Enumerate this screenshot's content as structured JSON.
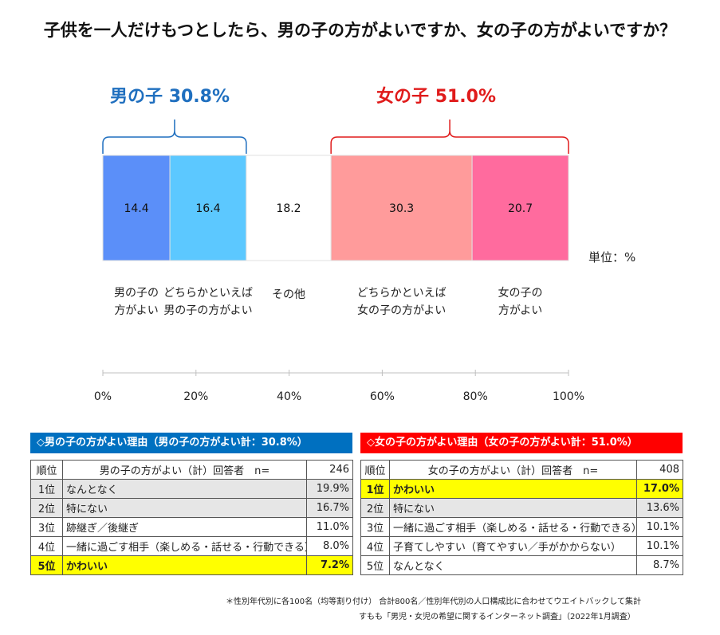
{
  "title": "子供を一人だけもつとしたら、男の子の方がよいですか、女の子の方がよいですか？",
  "boy_group": {
    "label": "男の子",
    "value": "30.8%",
    "color": "#1f6fbf"
  },
  "girl_group": {
    "label": "女の子",
    "value": "51.0%",
    "color": "#e01b1b"
  },
  "unit_label": "単位：%",
  "chart_data": {
    "type": "bar",
    "orientation": "horizontal-stacked",
    "xlim": [
      0,
      100
    ],
    "x_ticks": [
      "0%",
      "20%",
      "40%",
      "60%",
      "80%",
      "100%"
    ],
    "categories": [
      {
        "lines": [
          "男の子の",
          "方がよい"
        ],
        "value": 14.4,
        "label": "14.4",
        "color": "#5b8ff9"
      },
      {
        "lines": [
          "どちらかといえば",
          "男の子の方がよい"
        ],
        "value": 16.4,
        "label": "16.4",
        "color": "#5cc8ff"
      },
      {
        "lines": [
          "その他"
        ],
        "value": 18.2,
        "label": "18.2",
        "color": "#ffffff"
      },
      {
        "lines": [
          "どちらかといえば",
          "女の子の方がよい"
        ],
        "value": 30.3,
        "label": "30.3",
        "color": "#ff9b9b"
      },
      {
        "lines": [
          "女の子の",
          "方がよい"
        ],
        "value": 20.7,
        "label": "20.7",
        "color": "#ff6b9e"
      }
    ],
    "groups": [
      {
        "name": "男の子",
        "total": 30.8,
        "from": 0,
        "to": 30.8
      },
      {
        "name": "女の子",
        "total": 51.0,
        "from": 49.0,
        "to": 100
      }
    ]
  },
  "boy_table": {
    "heading": "◇男の子の方がよい理由（男の子の方がよい計：30.8%）",
    "head_color": "#0070c0",
    "header": {
      "rank": "順位",
      "desc": "男の子の方がよい（計）回答者　n=",
      "n": "246"
    },
    "rows": [
      {
        "rank": "1位",
        "reason": "なんとなく",
        "pct": "19.9%",
        "style": "shade"
      },
      {
        "rank": "2位",
        "reason": "特にない",
        "pct": "16.7%",
        "style": "shade"
      },
      {
        "rank": "3位",
        "reason": "跡継ぎ／後継ぎ",
        "pct": "11.0%",
        "style": ""
      },
      {
        "rank": "4位",
        "reason": "一緒に過ごす相手（楽しめる・話せる・行動できる）",
        "pct": "8.0%",
        "style": ""
      },
      {
        "rank": "5位",
        "reason": "かわいい",
        "pct": "7.2%",
        "style": "hl"
      }
    ]
  },
  "girl_table": {
    "heading": "◇女の子の方がよい理由（女の子の方がよい計：51.0%）",
    "head_color": "#ff0000",
    "header": {
      "rank": "順位",
      "desc": "女の子の方がよい（計）回答者　n=",
      "n": "408"
    },
    "rows": [
      {
        "rank": "1位",
        "reason": "かわいい",
        "pct": "17.0%",
        "style": "hl"
      },
      {
        "rank": "2位",
        "reason": "特にない",
        "pct": "13.6%",
        "style": "shade"
      },
      {
        "rank": "3位",
        "reason": "一緒に過ごす相手（楽しめる・話せる・行動できる）",
        "pct": "10.1%",
        "style": ""
      },
      {
        "rank": "4位",
        "reason": "子育てしやすい（育てやすい／手がかからない）",
        "pct": "10.1%",
        "style": ""
      },
      {
        "rank": "5位",
        "reason": "なんとなく",
        "pct": "8.7%",
        "style": ""
      }
    ]
  },
  "footnotes": [
    "＊性別年代別に各100名（均等割り付け） 合計800名／性別年代別の人口構成比に合わせてウエイトバックして集計",
    "すもも「男児・女児の希望に関するインターネット調査」（2022年1月調査）"
  ]
}
